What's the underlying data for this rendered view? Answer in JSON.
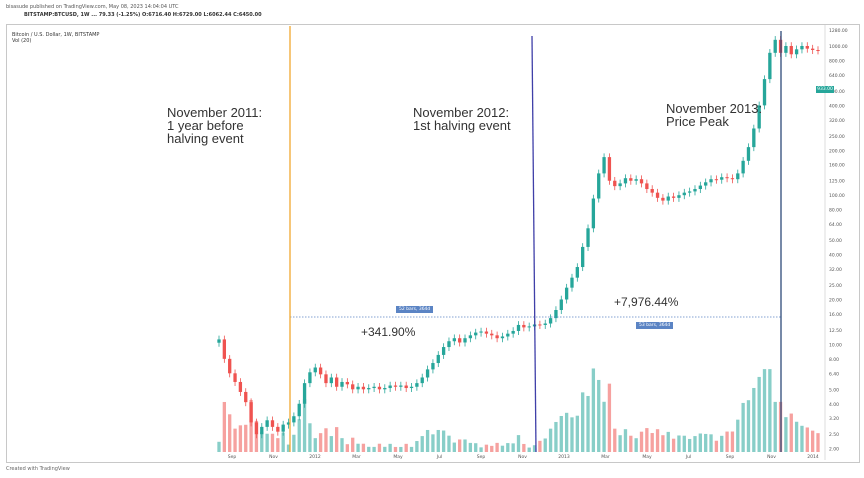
{
  "header": {
    "published_by": "bisasude published on TradingView.com, May 08, 2023 14:04:04 UTC",
    "symbol_line": "BITSTAMP:BTCUSD, 1W  ...  79.33  (-1.25%)  O:6716.40  H:6729.00  L:6062.44  C:6450.00"
  },
  "chart_title": "Bitcoin / U.S. Dollar, 1W, BITSTAMP",
  "volume_label": "Vol (20)",
  "footer": "Created with TradingView",
  "annotations": {
    "nov_2011": "November 2011:\n1 year before\nhalving event",
    "nov_2012": "November 2012:\n1st halving event",
    "nov_2013": "November 2013:\nPrice Peak",
    "gain_1": "+341.90%",
    "gain_2": "+7,976.44%",
    "badge_1": "52 bars, 364d",
    "badge_2": "53 bars, 364d"
  },
  "price_tag": "933.00",
  "colors": {
    "up": "#26a69a",
    "down": "#ef5350",
    "vline_2011": "#f0a830",
    "vline_2012": "#3f3fa8",
    "vline_2013": "#2e4a7a",
    "measure": "#5b84c4"
  },
  "chart_data": {
    "type": "candlestick",
    "title": "Bitcoin / U.S. Dollar, 1W, BITSTAMP",
    "scale": "log",
    "ylim": [
      1.9,
      1280
    ],
    "y_ticks": [
      "1280.00",
      "1000.00",
      "800.00",
      "640.00",
      "500.00",
      "400.00",
      "320.00",
      "250.00",
      "200.00",
      "160.00",
      "125.00",
      "100.00",
      "80.00",
      "64.00",
      "50.00",
      "40.00",
      "32.00",
      "25.00",
      "20.00",
      "16.00",
      "12.50",
      "10.00",
      "8.00",
      "6.40",
      "5.00",
      "4.00",
      "3.20",
      "2.50",
      "2.00"
    ],
    "x_ticks": [
      "Sep",
      "Nov",
      "2012",
      "Mar",
      "May",
      "Jul",
      "Sep",
      "Nov",
      "2013",
      "Mar",
      "May",
      "Jul",
      "Sep",
      "Nov",
      "2014"
    ],
    "events": [
      "November 2011",
      "November 2012",
      "November 2013"
    ],
    "closes": [
      10.8,
      8.0,
      6.4,
      5.6,
      4.8,
      4.1,
      3.0,
      2.5,
      2.8,
      3.1,
      2.8,
      2.6,
      2.9,
      3.0,
      3.3,
      4.0,
      5.5,
      6.5,
      7.0,
      6.3,
      5.5,
      6.0,
      5.2,
      5.6,
      5.4,
      5.0,
      5.2,
      5.0,
      5.1,
      5.2,
      5.0,
      5.1,
      5.3,
      5.2,
      5.3,
      5.1,
      5.2,
      5.5,
      6.0,
      6.8,
      7.5,
      8.5,
      9.6,
      10.5,
      11.0,
      10.3,
      11.0,
      11.5,
      12.0,
      12.2,
      11.8,
      11.5,
      11.0,
      11.3,
      11.8,
      12.3,
      13.5,
      13.0,
      13.2,
      13.6,
      13.5,
      13.8,
      15.0,
      17.0,
      20.0,
      24.0,
      28.0,
      33.0,
      45.0,
      60.0,
      95.0,
      140.0,
      180.0,
      125.0,
      115.0,
      120.0,
      130.0,
      125.0,
      128.0,
      120.0,
      110.0,
      104.0,
      96.0,
      92.0,
      98.0,
      96.0,
      100.0,
      104.0,
      106.0,
      110.0,
      116.0,
      122.0,
      128.0,
      127.0,
      132.0,
      130.0,
      128.0,
      140.0,
      170.0,
      210.0,
      280.0,
      400.0,
      600.0,
      900.0,
      1100.0,
      900.0,
      1000.0,
      880.0,
      950.0,
      1000.0,
      960.0,
      940.0,
      935.0
    ],
    "volume_note": "weekly volume histogram, spiking into late 2013"
  }
}
